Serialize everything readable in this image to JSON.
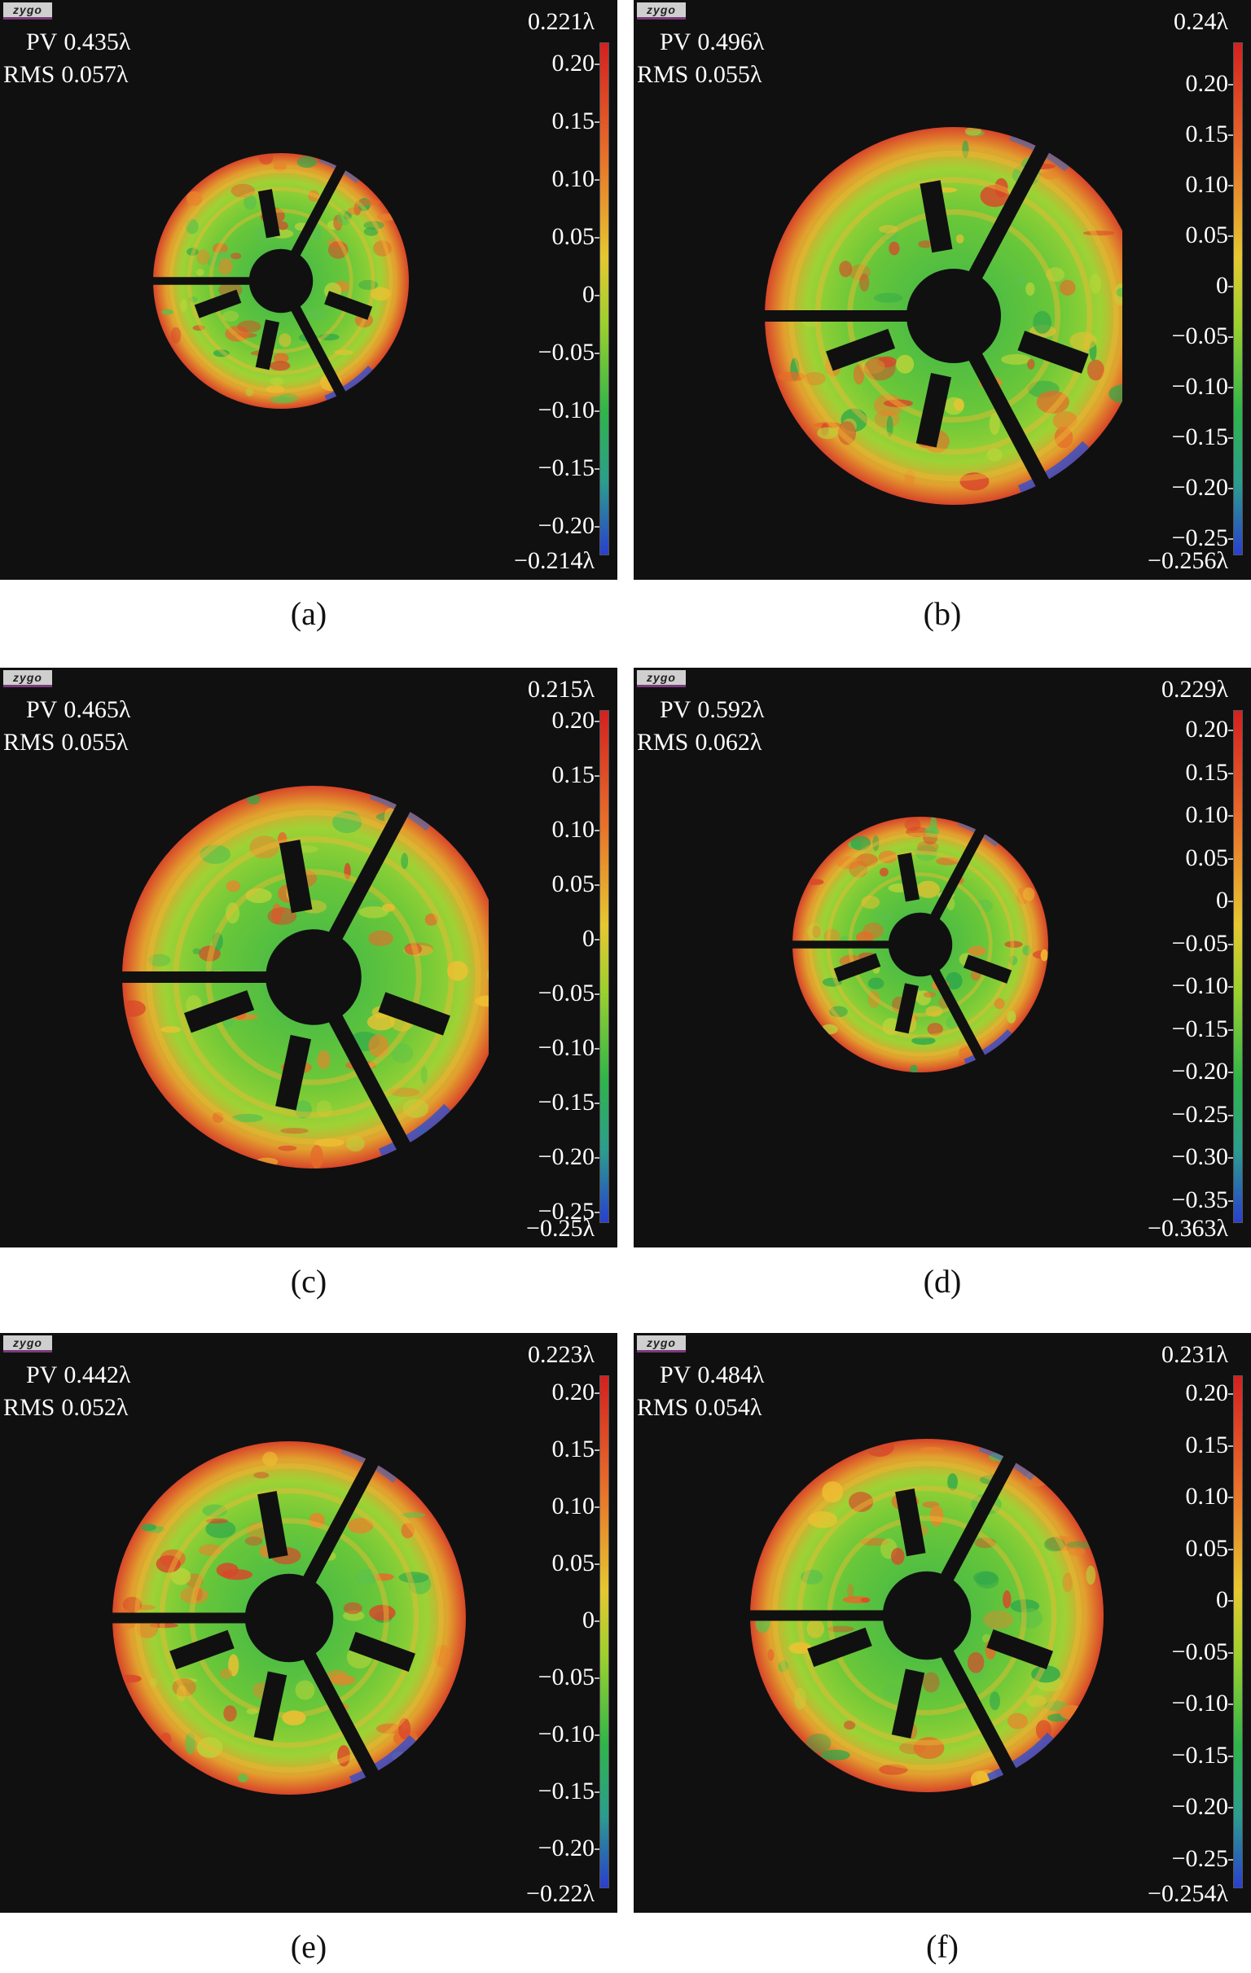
{
  "panels": [
    {
      "id": "a",
      "caption": "(a)",
      "logo": "zygo",
      "pv_label": "PV",
      "pv": "0.435λ",
      "rms_label": "RMS",
      "rms": "0.057λ",
      "scale_top": "0.221λ",
      "scale_bottom": "−0.214λ",
      "ticks": [
        "0.20",
        "0.15",
        "0.10",
        "0.05",
        "0",
        "−0.05",
        "−0.10",
        "−0.15",
        "−0.20"
      ]
    },
    {
      "id": "b",
      "caption": "(b)",
      "logo": "zygo",
      "pv_label": "PV",
      "pv": "0.496λ",
      "rms_label": "RMS",
      "rms": "0.055λ",
      "scale_top": "0.24λ",
      "scale_bottom": "−0.256λ",
      "ticks": [
        "0.20",
        "0.15",
        "0.10",
        "0.05",
        "0",
        "−0.05",
        "−0.10",
        "−0.15",
        "−0.20",
        "−0.25"
      ]
    },
    {
      "id": "c",
      "caption": "(c)",
      "logo": "zygo",
      "pv_label": "PV",
      "pv": "0.465λ",
      "rms_label": "RMS",
      "rms": "0.055λ",
      "scale_top": "0.215λ",
      "scale_bottom": "−0.25λ",
      "ticks": [
        "0.20",
        "0.15",
        "0.10",
        "0.05",
        "0",
        "−0.05",
        "−0.10",
        "−0.15",
        "−0.20",
        "−0.25"
      ]
    },
    {
      "id": "d",
      "caption": "(d)",
      "logo": "zygo",
      "pv_label": "PV",
      "pv": "0.592λ",
      "rms_label": "RMS",
      "rms": "0.062λ",
      "scale_top": "0.229λ",
      "scale_bottom": "−0.363λ",
      "ticks": [
        "0.20",
        "0.15",
        "0.10",
        "0.05",
        "0",
        "−0.05",
        "−0.10",
        "−0.15",
        "−0.20",
        "−0.25",
        "−0.30",
        "−0.35"
      ]
    },
    {
      "id": "e",
      "caption": "(e)",
      "logo": "zygo",
      "pv_label": "PV",
      "pv": "0.442λ",
      "rms_label": "RMS",
      "rms": "0.052λ",
      "scale_top": "0.223λ",
      "scale_bottom": "−0.22λ",
      "ticks": [
        "0.20",
        "0.15",
        "0.10",
        "0.05",
        "0",
        "−0.05",
        "−0.10",
        "−0.15",
        "−0.20"
      ]
    },
    {
      "id": "f",
      "caption": "(f)",
      "logo": "zygo",
      "pv_label": "PV",
      "pv": "0.484λ",
      "rms_label": "RMS",
      "rms": "0.054λ",
      "scale_top": "0.231λ",
      "scale_bottom": "−0.254λ",
      "ticks": [
        "0.20",
        "0.15",
        "0.10",
        "0.05",
        "0",
        "−0.05",
        "−0.10",
        "−0.15",
        "−0.20",
        "−0.25"
      ]
    }
  ]
}
